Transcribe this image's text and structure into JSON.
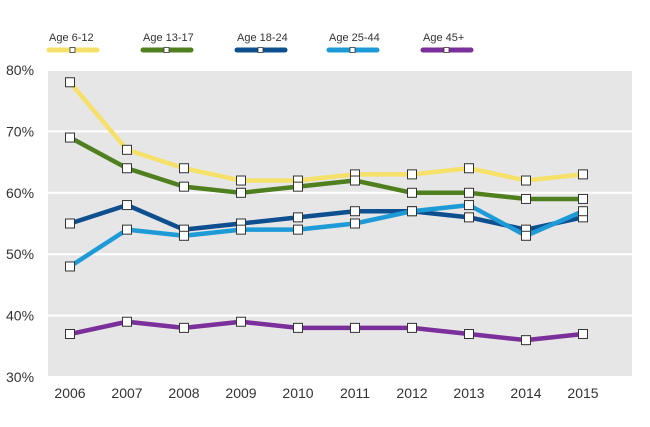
{
  "chart_data": {
    "type": "line",
    "title": "",
    "xlabel": "",
    "ylabel": "",
    "categories": [
      "2006",
      "2007",
      "2008",
      "2009",
      "2010",
      "2011",
      "2012",
      "2013",
      "2014",
      "2015"
    ],
    "ylim": [
      30,
      80
    ],
    "y_ticks": [
      80,
      70,
      60,
      50,
      40,
      30
    ],
    "y_tick_labels": [
      "80%",
      "70%",
      "60%",
      "50%",
      "40%",
      "30%"
    ],
    "grid": true,
    "legend_position": "top",
    "background_color": "#e6e6e6",
    "series": [
      {
        "name": "Age 6-12",
        "color": "#f5e16a",
        "values": [
          78,
          67,
          64,
          62,
          62,
          63,
          63,
          64,
          62,
          63
        ]
      },
      {
        "name": "Age 13-17",
        "color": "#4f7f1f",
        "values": [
          69,
          64,
          61,
          60,
          61,
          62,
          60,
          60,
          59,
          59
        ]
      },
      {
        "name": "Age 18-24",
        "color": "#0e4f8f",
        "values": [
          55,
          58,
          54,
          55,
          56,
          57,
          57,
          56,
          54,
          56
        ]
      },
      {
        "name": "Age 25-44",
        "color": "#1e9bd7",
        "values": [
          48,
          54,
          53,
          54,
          54,
          55,
          57,
          58,
          53,
          57
        ]
      },
      {
        "name": "Age 45+",
        "color": "#7b2f9a",
        "values": [
          37,
          39,
          38,
          39,
          38,
          38,
          38,
          37,
          36,
          37
        ]
      }
    ]
  }
}
